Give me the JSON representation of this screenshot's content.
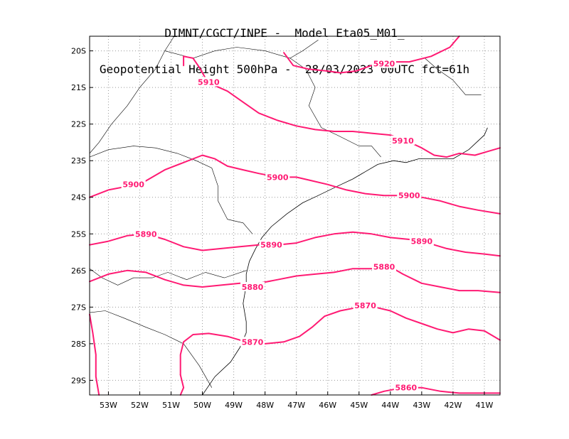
{
  "title": {
    "line1": "DIMNT/CGCT/INPE -  Model Eta05_M01_",
    "line2": "Geopotential Height 500hPa -  28/03/2023 00UTC fct=61h"
  },
  "colors": {
    "contour": "#ff1a73",
    "coast": "#000000",
    "grid": "#999999",
    "frame": "#000000"
  },
  "chart_data": {
    "type": "contour",
    "map_projection": "lat-lon",
    "xlim": [
      -53.6,
      -40.5
    ],
    "ylim": [
      -29.4,
      -19.6
    ],
    "grid": true,
    "grid_style": "dotted",
    "x_ticks": [
      {
        "value": -53,
        "label": "53W"
      },
      {
        "value": -52,
        "label": "52W"
      },
      {
        "value": -51,
        "label": "51W"
      },
      {
        "value": -50,
        "label": "50W"
      },
      {
        "value": -49,
        "label": "49W"
      },
      {
        "value": -48,
        "label": "48W"
      },
      {
        "value": -47,
        "label": "47W"
      },
      {
        "value": -46,
        "label": "46W"
      },
      {
        "value": -45,
        "label": "45W"
      },
      {
        "value": -44,
        "label": "44W"
      },
      {
        "value": -43,
        "label": "43W"
      },
      {
        "value": -42,
        "label": "42W"
      },
      {
        "value": -41,
        "label": "41W"
      }
    ],
    "y_ticks": [
      {
        "value": -20,
        "label": "20S"
      },
      {
        "value": -21,
        "label": "21S"
      },
      {
        "value": -22,
        "label": "22S"
      },
      {
        "value": -23,
        "label": "23S"
      },
      {
        "value": -24,
        "label": "24S"
      },
      {
        "value": -25,
        "label": "25S"
      },
      {
        "value": -26,
        "label": "26S"
      },
      {
        "value": -27,
        "label": "27S"
      },
      {
        "value": -28,
        "label": "28S"
      },
      {
        "value": -29,
        "label": "29S"
      }
    ],
    "contours": [
      {
        "level": "5920",
        "lines": [
          [
            [
              -47.4,
              -20.05
            ],
            [
              -47.1,
              -20.4
            ],
            [
              -46.6,
              -20.5
            ],
            [
              -46.0,
              -20.55
            ],
            [
              -45.6,
              -20.6
            ],
            [
              -45.1,
              -20.55
            ],
            [
              -44.6,
              -20.4
            ],
            [
              -44.0,
              -20.3
            ],
            [
              -43.4,
              -20.3
            ],
            [
              -42.7,
              -20.15
            ],
            [
              -42.1,
              -19.9
            ],
            [
              -41.8,
              -19.6
            ]
          ]
        ],
        "labels": [
          {
            "lon": -44.2,
            "lat": -20.35,
            "text": "5920"
          }
        ]
      },
      {
        "level": "5910",
        "lines": [
          [
            [
              -50.6,
              -20.4
            ],
            [
              -50.6,
              -20.15
            ],
            [
              -50.3,
              -20.2
            ],
            [
              -50.1,
              -20.45
            ],
            [
              -49.9,
              -20.75
            ],
            [
              -49.6,
              -20.95
            ],
            [
              -49.2,
              -21.1
            ],
            [
              -48.7,
              -21.4
            ],
            [
              -48.2,
              -21.7
            ],
            [
              -47.6,
              -21.9
            ],
            [
              -47.0,
              -22.05
            ],
            [
              -46.4,
              -22.15
            ],
            [
              -45.8,
              -22.2
            ],
            [
              -45.2,
              -22.2
            ],
            [
              -44.6,
              -22.25
            ],
            [
              -44.0,
              -22.3
            ],
            [
              -43.5,
              -22.45
            ],
            [
              -43.0,
              -22.65
            ],
            [
              -42.6,
              -22.85
            ],
            [
              -42.2,
              -22.9
            ],
            [
              -41.8,
              -22.8
            ],
            [
              -41.3,
              -22.85
            ],
            [
              -40.9,
              -22.75
            ],
            [
              -40.5,
              -22.65
            ]
          ]
        ],
        "labels": [
          {
            "lon": -49.8,
            "lat": -20.85,
            "text": "5910"
          },
          {
            "lon": -43.6,
            "lat": -22.45,
            "text": "5910"
          }
        ]
      },
      {
        "level": "5900",
        "lines": [
          [
            [
              -53.6,
              -24.0
            ],
            [
              -53.0,
              -23.8
            ],
            [
              -52.4,
              -23.7
            ],
            [
              -51.8,
              -23.55
            ],
            [
              -51.2,
              -23.25
            ],
            [
              -50.6,
              -23.05
            ],
            [
              -50.0,
              -22.85
            ],
            [
              -49.6,
              -22.95
            ],
            [
              -49.2,
              -23.15
            ],
            [
              -48.7,
              -23.25
            ],
            [
              -48.2,
              -23.35
            ],
            [
              -47.6,
              -23.45
            ],
            [
              -47.0,
              -23.45
            ],
            [
              -46.5,
              -23.55
            ],
            [
              -46.0,
              -23.65
            ],
            [
              -45.4,
              -23.8
            ],
            [
              -44.8,
              -23.9
            ],
            [
              -44.2,
              -23.95
            ],
            [
              -43.6,
              -23.95
            ],
            [
              -43.0,
              -24.0
            ],
            [
              -42.4,
              -24.1
            ],
            [
              -41.8,
              -24.25
            ],
            [
              -41.2,
              -24.35
            ],
            [
              -40.5,
              -24.45
            ]
          ]
        ],
        "labels": [
          {
            "lon": -52.2,
            "lat": -23.65,
            "text": "5900"
          },
          {
            "lon": -47.6,
            "lat": -23.45,
            "text": "5900"
          },
          {
            "lon": -43.4,
            "lat": -23.95,
            "text": "5900"
          }
        ]
      },
      {
        "level": "5890",
        "lines": [
          [
            [
              -53.6,
              -25.3
            ],
            [
              -53.0,
              -25.2
            ],
            [
              -52.4,
              -25.05
            ],
            [
              -51.8,
              -25.0
            ],
            [
              -51.2,
              -25.15
            ],
            [
              -50.6,
              -25.35
            ],
            [
              -50.0,
              -25.45
            ],
            [
              -49.4,
              -25.4
            ],
            [
              -48.8,
              -25.35
            ],
            [
              -48.2,
              -25.3
            ],
            [
              -47.6,
              -25.3
            ],
            [
              -47.0,
              -25.25
            ],
            [
              -46.4,
              -25.1
            ],
            [
              -45.8,
              -25.0
            ],
            [
              -45.2,
              -24.95
            ],
            [
              -44.6,
              -25.0
            ],
            [
              -44.0,
              -25.1
            ],
            [
              -43.4,
              -25.15
            ],
            [
              -42.8,
              -25.25
            ],
            [
              -42.2,
              -25.4
            ],
            [
              -41.6,
              -25.5
            ],
            [
              -41.0,
              -25.55
            ],
            [
              -40.5,
              -25.6
            ]
          ]
        ],
        "labels": [
          {
            "lon": -51.8,
            "lat": -25.0,
            "text": "5890"
          },
          {
            "lon": -47.8,
            "lat": -25.3,
            "text": "5890"
          },
          {
            "lon": -43.0,
            "lat": -25.2,
            "text": "5890"
          }
        ]
      },
      {
        "level": "5880",
        "lines": [
          [
            [
              -53.6,
              -26.3
            ],
            [
              -53.0,
              -26.1
            ],
            [
              -52.4,
              -26.0
            ],
            [
              -51.8,
              -26.05
            ],
            [
              -51.2,
              -26.25
            ],
            [
              -50.6,
              -26.4
            ],
            [
              -50.0,
              -26.45
            ],
            [
              -49.4,
              -26.4
            ],
            [
              -48.8,
              -26.35
            ],
            [
              -48.2,
              -26.35
            ],
            [
              -47.6,
              -26.25
            ],
            [
              -47.0,
              -26.15
            ],
            [
              -46.4,
              -26.1
            ],
            [
              -45.8,
              -26.05
            ],
            [
              -45.2,
              -25.95
            ],
            [
              -44.6,
              -25.95
            ],
            [
              -44.0,
              -25.9
            ],
            [
              -43.6,
              -26.1
            ],
            [
              -43.0,
              -26.35
            ],
            [
              -42.4,
              -26.45
            ],
            [
              -41.8,
              -26.55
            ],
            [
              -41.2,
              -26.55
            ],
            [
              -40.5,
              -26.6
            ]
          ]
        ],
        "labels": [
          {
            "lon": -48.4,
            "lat": -26.45,
            "text": "5880"
          },
          {
            "lon": -44.2,
            "lat": -25.9,
            "text": "5880"
          }
        ]
      },
      {
        "level": "5870",
        "lines": [
          [
            [
              -50.7,
              -28.85
            ],
            [
              -50.7,
              -28.3
            ],
            [
              -50.6,
              -27.95
            ],
            [
              -50.3,
              -27.75
            ],
            [
              -49.8,
              -27.72
            ],
            [
              -49.2,
              -27.8
            ],
            [
              -48.6,
              -27.95
            ],
            [
              -48.0,
              -28.0
            ],
            [
              -47.4,
              -27.95
            ],
            [
              -46.9,
              -27.8
            ],
            [
              -46.5,
              -27.55
            ],
            [
              -46.1,
              -27.25
            ],
            [
              -45.6,
              -27.1
            ],
            [
              -45.0,
              -27.0
            ],
            [
              -44.5,
              -27.0
            ],
            [
              -44.0,
              -27.1
            ],
            [
              -43.5,
              -27.3
            ],
            [
              -43.0,
              -27.45
            ],
            [
              -42.5,
              -27.6
            ],
            [
              -42.0,
              -27.7
            ],
            [
              -41.5,
              -27.6
            ],
            [
              -41.0,
              -27.65
            ],
            [
              -40.5,
              -27.9
            ]
          ],
          [
            [
              -50.7,
              -28.85
            ],
            [
              -50.6,
              -29.2
            ],
            [
              -50.7,
              -29.4
            ]
          ]
        ],
        "labels": [
          {
            "lon": -48.4,
            "lat": -27.95,
            "text": "5870"
          },
          {
            "lon": -44.8,
            "lat": -26.95,
            "text": "5870"
          }
        ]
      },
      {
        "level": "5860",
        "lines": [
          [
            [
              -53.3,
              -29.4
            ],
            [
              -53.4,
              -28.9
            ],
            [
              -53.4,
              -28.3
            ],
            [
              -53.5,
              -27.7
            ],
            [
              -53.6,
              -27.2
            ]
          ],
          [
            [
              -44.6,
              -29.4
            ],
            [
              -44.2,
              -29.3
            ],
            [
              -43.6,
              -29.2
            ],
            [
              -43.0,
              -29.2
            ],
            [
              -42.4,
              -29.3
            ],
            [
              -41.8,
              -29.35
            ],
            [
              -41.2,
              -29.35
            ],
            [
              -40.5,
              -29.35
            ]
          ]
        ],
        "labels": [
          {
            "lon": -43.5,
            "lat": -29.2,
            "text": "5860"
          }
        ]
      }
    ]
  },
  "map_lines": {
    "coast": [
      [
        [
          -40.9,
          -22.1
        ],
        [
          -41.0,
          -22.3
        ],
        [
          -41.5,
          -22.7
        ],
        [
          -42.0,
          -22.95
        ],
        [
          -42.5,
          -22.95
        ],
        [
          -43.1,
          -22.95
        ],
        [
          -43.5,
          -23.05
        ],
        [
          -43.9,
          -23.0
        ],
        [
          -44.4,
          -23.1
        ],
        [
          -44.8,
          -23.3
        ],
        [
          -45.2,
          -23.5
        ],
        [
          -45.7,
          -23.7
        ],
        [
          -46.3,
          -23.95
        ],
        [
          -46.8,
          -24.15
        ],
        [
          -47.3,
          -24.45
        ],
        [
          -47.8,
          -24.8
        ],
        [
          -48.1,
          -25.1
        ],
        [
          -48.3,
          -25.4
        ],
        [
          -48.5,
          -25.75
        ],
        [
          -48.6,
          -26.1
        ],
        [
          -48.6,
          -26.4
        ],
        [
          -48.7,
          -26.9
        ],
        [
          -48.6,
          -27.4
        ],
        [
          -48.6,
          -27.7
        ],
        [
          -48.8,
          -28.1
        ],
        [
          -49.1,
          -28.5
        ],
        [
          -49.6,
          -28.9
        ],
        [
          -50.0,
          -29.4
        ]
      ]
    ],
    "borders": [
      [
        [
          -50.9,
          -19.6
        ],
        [
          -51.2,
          -20.0
        ],
        [
          -51.5,
          -20.5
        ],
        [
          -52.0,
          -21.0
        ],
        [
          -52.4,
          -21.5
        ],
        [
          -52.9,
          -22.0
        ],
        [
          -53.3,
          -22.5
        ],
        [
          -53.6,
          -22.8
        ]
      ],
      [
        [
          -51.2,
          -20.0
        ],
        [
          -50.3,
          -20.2
        ],
        [
          -49.6,
          -20.0
        ],
        [
          -48.9,
          -19.9
        ],
        [
          -48.0,
          -20.0
        ],
        [
          -47.2,
          -20.2
        ],
        [
          -46.7,
          -20.5
        ],
        [
          -46.4,
          -21.0
        ],
        [
          -46.6,
          -21.5
        ],
        [
          -46.2,
          -22.1
        ],
        [
          -45.7,
          -22.3
        ],
        [
          -45.0,
          -22.6
        ],
        [
          -44.6,
          -22.6
        ],
        [
          -44.3,
          -22.9
        ]
      ],
      [
        [
          -47.2,
          -20.2
        ],
        [
          -46.8,
          -20.0
        ],
        [
          -46.3,
          -19.7
        ]
      ],
      [
        [
          -42.9,
          -20.2
        ],
        [
          -42.5,
          -20.5
        ],
        [
          -42.0,
          -20.8
        ],
        [
          -41.6,
          -21.2
        ],
        [
          -41.1,
          -21.2
        ]
      ],
      [
        [
          -53.6,
          -22.9
        ],
        [
          -53.0,
          -22.7
        ],
        [
          -52.2,
          -22.6
        ],
        [
          -51.5,
          -22.65
        ],
        [
          -50.8,
          -22.8
        ],
        [
          -50.2,
          -23.0
        ],
        [
          -49.7,
          -23.2
        ],
        [
          -49.5,
          -23.7
        ],
        [
          -49.5,
          -24.1
        ],
        [
          -49.2,
          -24.6
        ],
        [
          -48.7,
          -24.7
        ],
        [
          -48.4,
          -25.0
        ]
      ],
      [
        [
          -53.6,
          -25.95
        ],
        [
          -53.2,
          -26.2
        ],
        [
          -52.7,
          -26.4
        ],
        [
          -52.2,
          -26.2
        ],
        [
          -51.6,
          -26.2
        ],
        [
          -51.1,
          -26.05
        ],
        [
          -50.5,
          -26.25
        ],
        [
          -49.9,
          -26.05
        ],
        [
          -49.3,
          -26.2
        ],
        [
          -48.6,
          -26.0
        ]
      ],
      [
        [
          -53.6,
          -27.15
        ],
        [
          -53.1,
          -27.1
        ],
        [
          -52.5,
          -27.3
        ],
        [
          -51.8,
          -27.55
        ],
        [
          -51.2,
          -27.75
        ],
        [
          -50.6,
          -28.0
        ],
        [
          -50.1,
          -28.6
        ],
        [
          -49.7,
          -29.2
        ]
      ]
    ]
  }
}
